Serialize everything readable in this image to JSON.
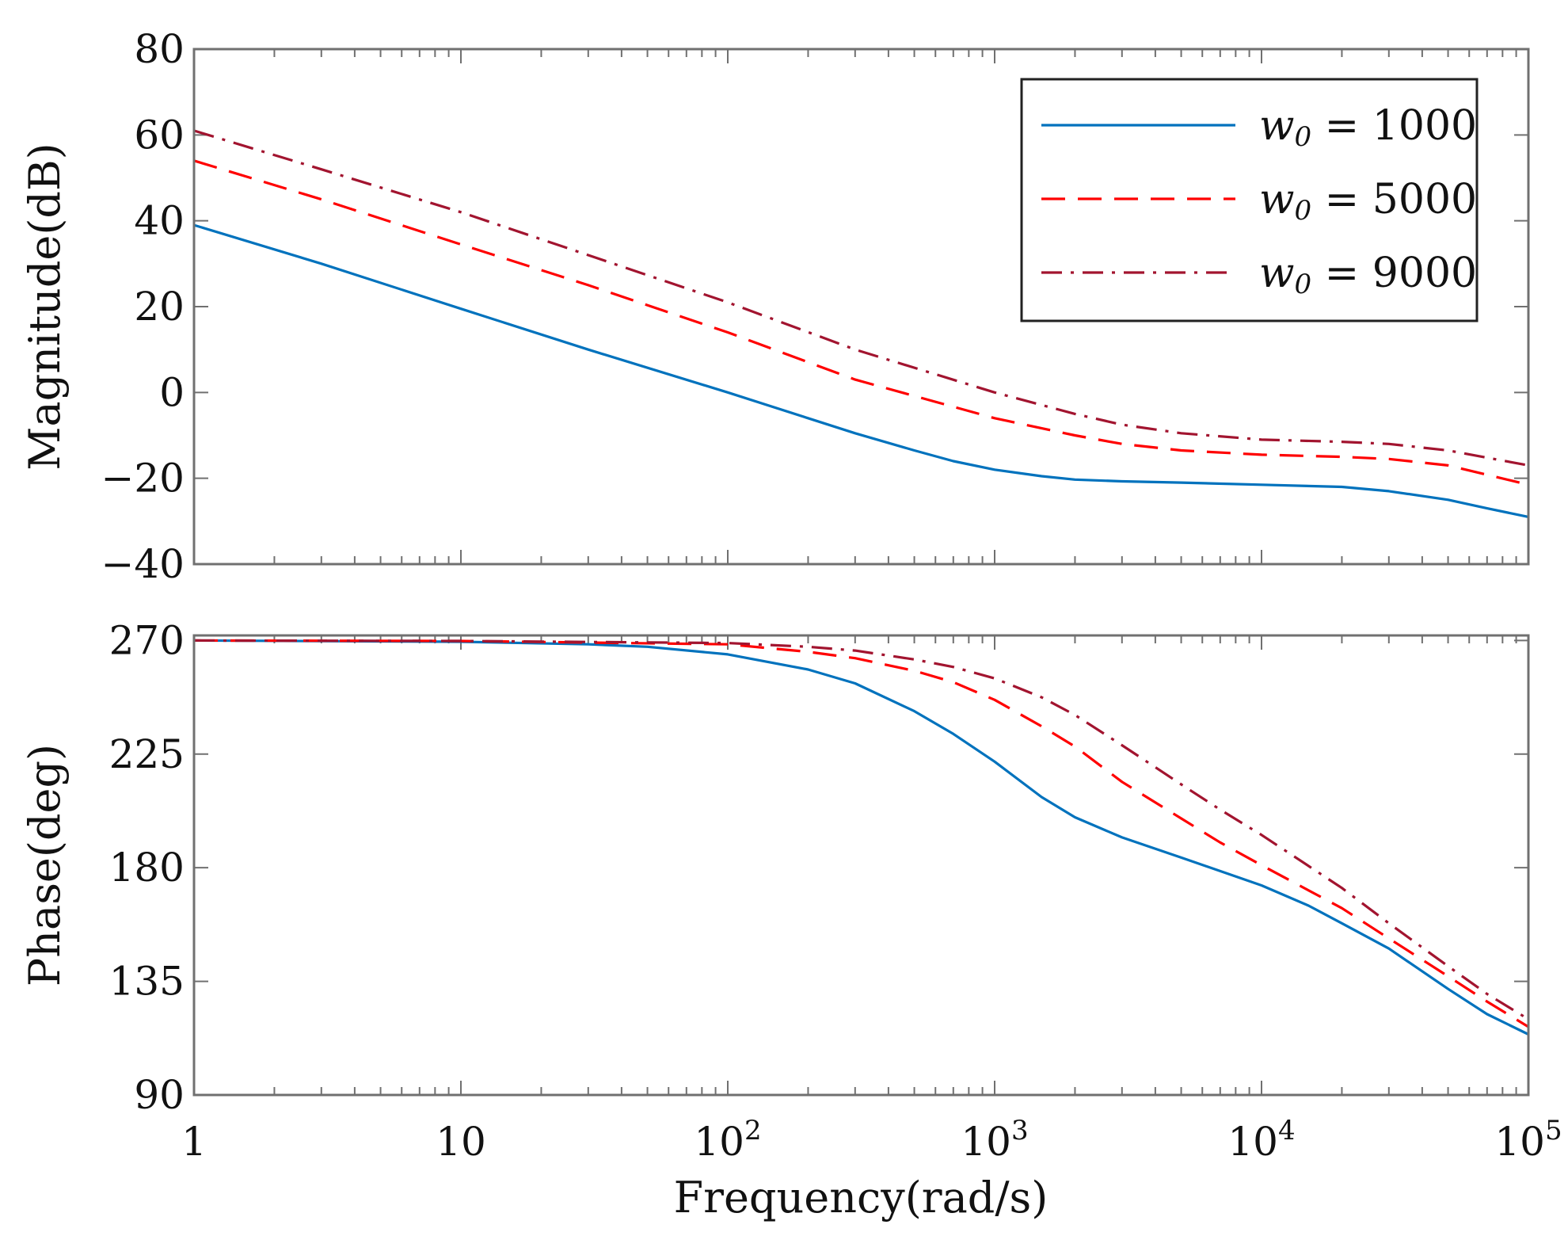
{
  "chart_data": [
    {
      "type": "line",
      "panel": "magnitude",
      "x_scale": "log",
      "xlim": [
        1,
        100000
      ],
      "ylim": [
        -40,
        80
      ],
      "ylabel": "Magnitude(dB)",
      "yticks": [
        {
          "value": 80,
          "label": "80"
        },
        {
          "value": 60,
          "label": "60"
        },
        {
          "value": 40,
          "label": "40"
        },
        {
          "value": 20,
          "label": "20"
        },
        {
          "value": 0,
          "label": "0"
        },
        {
          "value": -20,
          "label": "−20"
        },
        {
          "value": -40,
          "label": "−40"
        }
      ],
      "legend": {
        "position": "top-right",
        "entries": [
          {
            "symbol": "w",
            "sub": "0",
            "eq": " = ",
            "value": "1000"
          },
          {
            "symbol": "w",
            "sub": "0",
            "eq": " = ",
            "value": "5000"
          },
          {
            "symbol": "w",
            "sub": "0",
            "eq": " = ",
            "value": "9000"
          }
        ]
      },
      "series": [
        {
          "name": "w0 = 1000",
          "color": "#0072BD",
          "style": "solid",
          "x": [
            1,
            3,
            10,
            30,
            100,
            200,
            300,
            500,
            700,
            1000,
            1500,
            2000,
            3000,
            5000,
            10000,
            20000,
            30000,
            50000,
            70000,
            100000
          ],
          "y": [
            39,
            30,
            19.5,
            10,
            0,
            -6,
            -9.5,
            -13.5,
            -16,
            -18,
            -19.5,
            -20.3,
            -20.7,
            -21,
            -21.5,
            -22,
            -23,
            -25,
            -27,
            -29
          ]
        },
        {
          "name": "w0 = 5000",
          "color": "#FF0000",
          "style": "dashed",
          "x": [
            1,
            3,
            10,
            30,
            100,
            300,
            1000,
            2000,
            3000,
            5000,
            10000,
            20000,
            30000,
            50000,
            100000
          ],
          "y": [
            54,
            45,
            34.5,
            25,
            14,
            3,
            -6,
            -10,
            -12,
            -13.5,
            -14.5,
            -15,
            -15.5,
            -17,
            -21.5
          ]
        },
        {
          "name": "w0 = 9000",
          "color": "#A2142F",
          "style": "dashdot",
          "x": [
            1,
            3,
            10,
            30,
            100,
            300,
            1000,
            2000,
            3000,
            5000,
            10000,
            20000,
            30000,
            50000,
            100000
          ],
          "y": [
            61,
            52,
            42,
            32,
            21,
            10,
            0,
            -5,
            -7.5,
            -9.5,
            -11,
            -11.5,
            -12,
            -13.5,
            -17
          ]
        }
      ]
    },
    {
      "type": "line",
      "panel": "phase",
      "x_scale": "log",
      "xlim": [
        1,
        100000
      ],
      "ylim": [
        90,
        272
      ],
      "ylabel": "Phase(deg)",
      "xlabel": "Frequency(rad/s)",
      "yticks": [
        {
          "value": 270,
          "label": "270"
        },
        {
          "value": 225,
          "label": "225"
        },
        {
          "value": 180,
          "label": "180"
        },
        {
          "value": 135,
          "label": "135"
        },
        {
          "value": 90,
          "label": "90"
        }
      ],
      "xticks": [
        {
          "value": 1,
          "label": "1"
        },
        {
          "value": 10,
          "label": "10"
        },
        {
          "value": 100,
          "label": "10",
          "exp": "2"
        },
        {
          "value": 1000,
          "label": "10",
          "exp": "3"
        },
        {
          "value": 10000,
          "label": "10",
          "exp": "4"
        },
        {
          "value": 100000,
          "label": "10",
          "exp": "5"
        }
      ],
      "series": [
        {
          "name": "w0 = 1000",
          "color": "#0072BD",
          "style": "solid",
          "x": [
            1,
            10,
            30,
            50,
            100,
            200,
            300,
            500,
            700,
            1000,
            1500,
            2000,
            3000,
            5000,
            10000,
            15000,
            20000,
            30000,
            50000,
            70000,
            100000
          ],
          "y": [
            270,
            269.5,
            268.5,
            267.5,
            264.5,
            258.5,
            253,
            242,
            233,
            222,
            208,
            200,
            192,
            184,
            173,
            165,
            158,
            148,
            132,
            122,
            114
          ]
        },
        {
          "name": "w0 = 5000",
          "color": "#FF0000",
          "style": "dashed",
          "x": [
            1,
            10,
            100,
            200,
            300,
            500,
            700,
            1000,
            1500,
            2000,
            3000,
            5000,
            7000,
            10000,
            20000,
            30000,
            50000,
            70000,
            100000
          ],
          "y": [
            270,
            269.8,
            268.5,
            265.5,
            263,
            258,
            253.5,
            246.5,
            236,
            228,
            214,
            199.5,
            190,
            181,
            164,
            152,
            137,
            127,
            117
          ]
        },
        {
          "name": "w0 = 9000",
          "color": "#A2142F",
          "style": "dashdot",
          "x": [
            1,
            10,
            100,
            200,
            300,
            500,
            700,
            1000,
            1500,
            2000,
            3000,
            5000,
            7000,
            10000,
            20000,
            30000,
            50000,
            70000,
            100000
          ],
          "y": [
            270,
            269.8,
            269,
            267.5,
            266,
            262.5,
            259.5,
            255,
            247.5,
            240.5,
            228.5,
            213,
            203,
            193,
            172,
            158,
            141,
            130,
            120
          ]
        }
      ]
    }
  ]
}
